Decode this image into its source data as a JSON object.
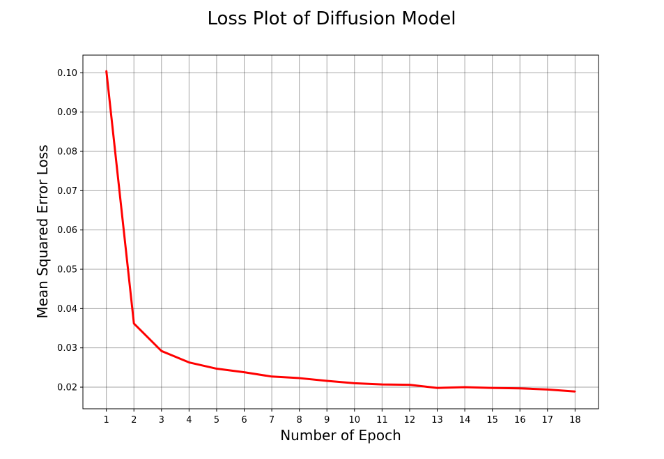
{
  "chart_data": {
    "type": "line",
    "title": "Loss Plot of Diffusion Model",
    "xlabel": "Number of Epoch",
    "ylabel": "Mean Squared Error Loss",
    "x": [
      1,
      2,
      3,
      4,
      5,
      6,
      7,
      8,
      9,
      10,
      11,
      12,
      13,
      14,
      15,
      16,
      17,
      18
    ],
    "series": [
      {
        "values": [
          0.1005,
          0.0362,
          0.0292,
          0.0263,
          0.0247,
          0.0238,
          0.0227,
          0.0223,
          0.0216,
          0.021,
          0.0207,
          0.0206,
          0.0198,
          0.02,
          0.0198,
          0.0197,
          0.0194,
          0.0189
        ],
        "color": "#ff0000"
      }
    ],
    "xticks": [
      "1",
      "2",
      "3",
      "4",
      "5",
      "6",
      "7",
      "8",
      "9",
      "10",
      "11",
      "12",
      "13",
      "14",
      "15",
      "16",
      "17",
      "18"
    ],
    "yticks": [
      "0.02",
      "0.03",
      "0.04",
      "0.05",
      "0.06",
      "0.07",
      "0.08",
      "0.09",
      "0.10"
    ],
    "ytick_values": [
      0.02,
      0.03,
      0.04,
      0.05,
      0.06,
      0.07,
      0.08,
      0.09,
      0.1
    ],
    "xlim": [
      0.15,
      18.85
    ],
    "ylim": [
      0.0145,
      0.1045
    ],
    "grid": true,
    "grid_color": "#000000"
  }
}
